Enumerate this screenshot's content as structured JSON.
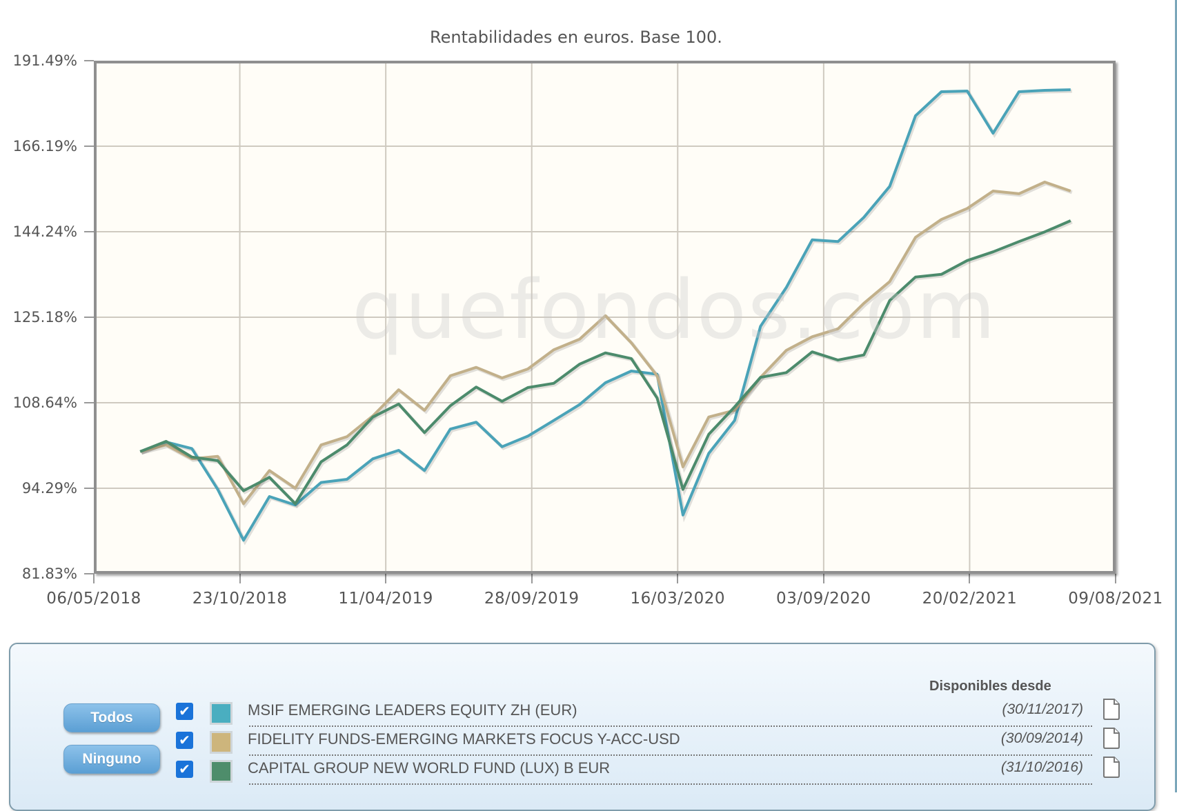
{
  "chart_data": {
    "type": "line",
    "title": "Rentabilidades en euros. Base 100.",
    "xlabel": "",
    "ylabel": "",
    "y_scale": "log",
    "ylim": [
      81.83,
      191.49
    ],
    "y_ticks": [
      "191.49%",
      "166.19%",
      "144.24%",
      "125.18%",
      "108.64%",
      "94.29%",
      "81.83%"
    ],
    "y_tick_values": [
      191.49,
      166.19,
      144.24,
      125.18,
      108.64,
      94.29,
      81.83
    ],
    "x_ticks": [
      "06/05/2018",
      "23/10/2018",
      "11/04/2019",
      "28/09/2019",
      "16/03/2020",
      "03/09/2020",
      "20/02/2021",
      "09/08/2021"
    ],
    "grid": true,
    "legend_position": "bottom",
    "watermark": "quefondos.com",
    "x": [
      "06/2018",
      "07/2018",
      "08/2018",
      "09/2018",
      "10/2018",
      "11/2018",
      "12/2018",
      "01/2019",
      "02/2019",
      "03/2019",
      "04/2019",
      "05/2019",
      "06/2019",
      "07/2019",
      "08/2019",
      "09/2019",
      "10/2019",
      "11/2019",
      "12/2019",
      "01/2020",
      "02/2020",
      "03/2020",
      "04/2020",
      "05/2020",
      "06/2020",
      "07/2020",
      "08/2020",
      "09/2020",
      "10/2020",
      "11/2020",
      "12/2020",
      "01/2021",
      "02/2021",
      "03/2021",
      "04/2021",
      "05/2021",
      "06/2021"
    ],
    "series": [
      {
        "name": "MSIF EMERGING LEADERS EQUITY ZH (EUR)",
        "color": "#4aa3b8",
        "values": [
          100.2,
          101.8,
          100.7,
          94.1,
          86.5,
          93.0,
          91.7,
          95.2,
          95.7,
          99.0,
          100.4,
          97.1,
          104.0,
          105.2,
          101.0,
          102.8,
          105.5,
          108.3,
          112.3,
          114.5,
          113.9,
          90.2,
          99.9,
          105.5,
          123.3,
          131.5,
          142.3,
          141.9,
          147.7,
          155.5,
          174.8,
          181.9,
          182.1,
          169.8,
          181.9,
          182.3,
          182.5
        ]
      },
      {
        "name": "FIDELITY FUNDS-EMERGING MARKETS FOCUS Y-ACC-USD",
        "color": "#c2b08a",
        "values": [
          100.2,
          101.3,
          99.0,
          99.4,
          91.9,
          97.1,
          94.3,
          101.3,
          102.7,
          106.3,
          111.0,
          107.3,
          113.6,
          115.2,
          113.2,
          114.9,
          118.6,
          120.7,
          125.5,
          120.0,
          113.6,
          97.7,
          106.1,
          107.3,
          113.3,
          118.5,
          121.2,
          122.8,
          128.1,
          132.8,
          142.9,
          147.2,
          149.9,
          154.3,
          153.6,
          156.6,
          154.3
        ]
      },
      {
        "name": "CAPITAL GROUP NEW WORLD FUND (LUX) B EUR",
        "color": "#4c8b6c",
        "values": [
          100.2,
          101.9,
          99.3,
          98.7,
          93.9,
          96.0,
          91.9,
          98.5,
          101.3,
          106.1,
          108.4,
          103.4,
          108.1,
          111.5,
          108.9,
          111.4,
          112.2,
          115.8,
          118.0,
          116.9,
          109.5,
          94.1,
          103.1,
          107.9,
          113.3,
          114.2,
          118.2,
          116.6,
          117.6,
          128.7,
          133.8,
          134.4,
          137.5,
          139.5,
          141.9,
          144.2,
          146.9
        ]
      }
    ]
  },
  "legend": {
    "buttons": {
      "all": "Todos",
      "none": "Ninguno"
    },
    "available_header": "Disponibles desde",
    "items": [
      {
        "name": "MSIF EMERGING LEADERS EQUITY ZH (EUR)",
        "color": "#4aaec0",
        "since": "(30/11/2017)",
        "checked": true
      },
      {
        "name": "FIDELITY FUNDS-EMERGING MARKETS FOCUS Y-ACC-USD",
        "color": "#cdb57c",
        "since": "(30/09/2014)",
        "checked": true
      },
      {
        "name": "CAPITAL GROUP NEW WORLD FUND (LUX) B EUR",
        "color": "#4e8d6b",
        "since": "(31/10/2016)",
        "checked": true
      }
    ],
    "checkbox_icon": "✔",
    "document_icon": "document-icon"
  }
}
